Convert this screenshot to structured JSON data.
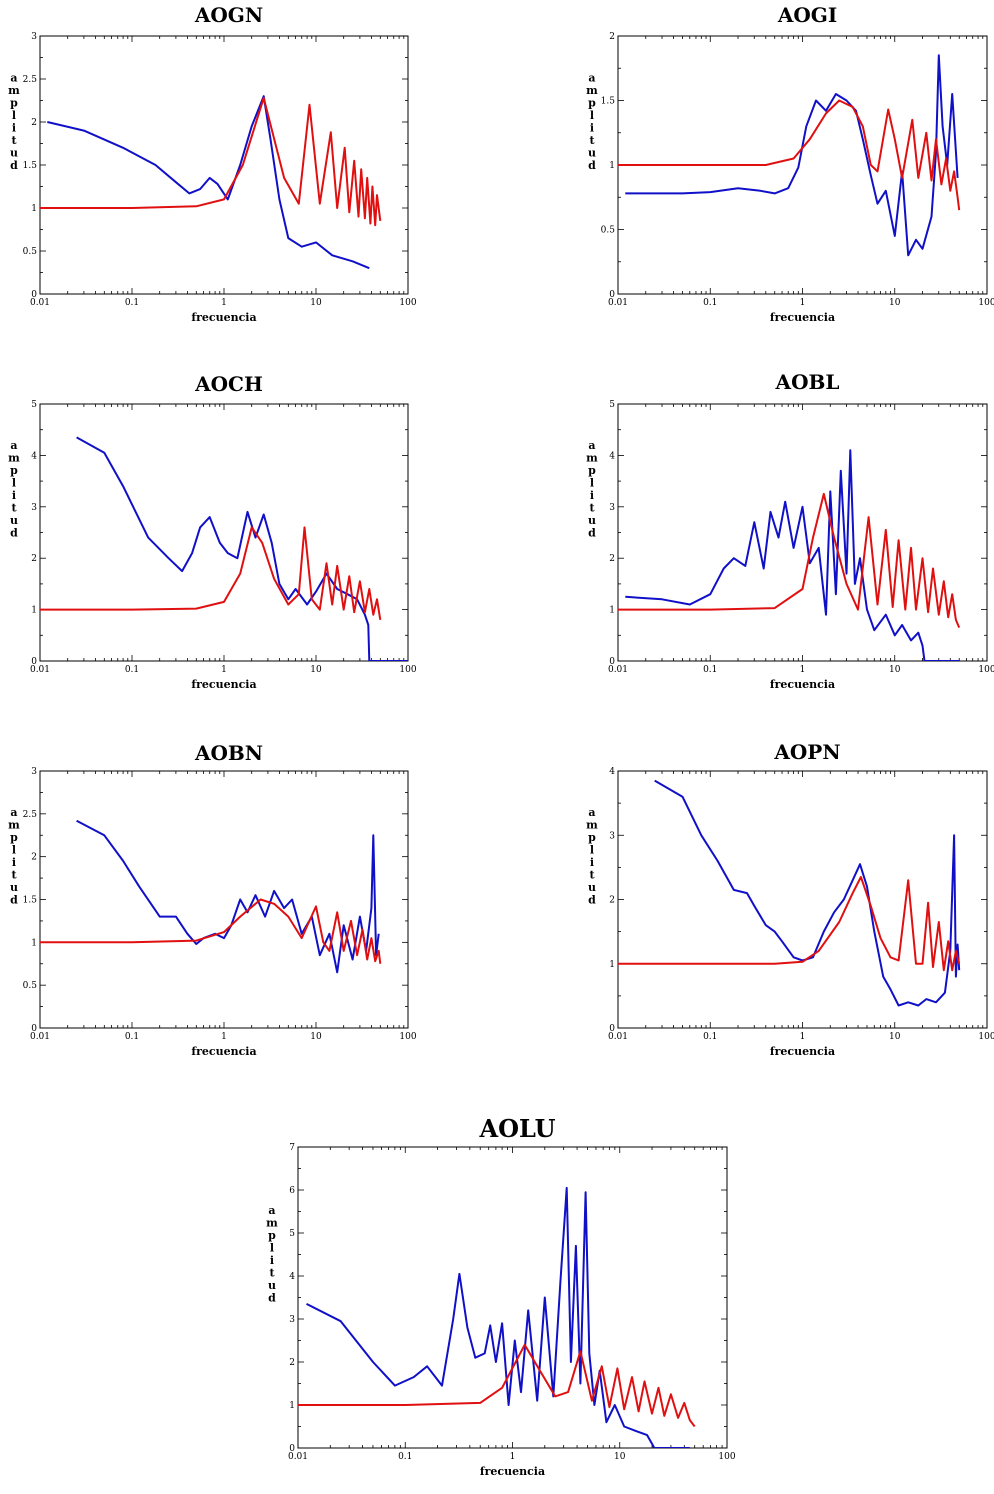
{
  "chart_data": [
    {
      "type": "line",
      "title": "AOGN",
      "xlabel": "frecuencia",
      "ylabel": "amplitud",
      "xscale": "log",
      "xlim": [
        0.01,
        100
      ],
      "ylim": [
        0,
        3
      ],
      "xticks": [
        "0.01",
        "0.1",
        "1",
        "10",
        "100"
      ],
      "yticks": [
        "0",
        "0.5",
        "1",
        "1.5",
        "2",
        "2.5",
        "3"
      ],
      "grid": false,
      "series": [
        {
          "color": "#1010c8",
          "x": [
            0.012,
            0.03,
            0.08,
            0.18,
            0.3,
            0.42,
            0.55,
            0.7,
            0.85,
            1.1,
            1.5,
            2.0,
            2.7,
            3.2,
            4.0,
            5.0,
            7.0,
            10,
            15,
            25,
            38
          ],
          "y": [
            2.0,
            1.9,
            1.7,
            1.5,
            1.3,
            1.17,
            1.22,
            1.35,
            1.28,
            1.1,
            1.5,
            1.95,
            2.3,
            1.8,
            1.1,
            0.65,
            0.55,
            0.6,
            0.45,
            0.38,
            0.3
          ]
        },
        {
          "color": "#e01010",
          "peaks": [
            [
              2.7,
              2.28,
              0.16
            ],
            [
              8.5,
              2.2,
              0.05
            ],
            [
              14.5,
              1.88,
              0.04
            ],
            [
              20.5,
              1.7,
              0.035
            ],
            [
              26,
              1.55,
              0.03
            ],
            [
              31,
              1.45,
              0.03
            ],
            [
              36,
              1.35,
              0.03
            ],
            [
              41,
              1.25,
              0.03
            ],
            [
              46,
              1.15,
              0.03
            ]
          ],
          "x": [
            0.01,
            0.1,
            0.5,
            1,
            1.6,
            2.7,
            4.5,
            6.5,
            8.5,
            11,
            14.5,
            17,
            20.5,
            23,
            26,
            29,
            31,
            34,
            36,
            39,
            41,
            44,
            46,
            50
          ],
          "y": [
            1.0,
            1.0,
            1.02,
            1.1,
            1.5,
            2.28,
            1.35,
            1.05,
            2.2,
            1.05,
            1.88,
            1.0,
            1.7,
            0.95,
            1.55,
            0.9,
            1.45,
            0.88,
            1.35,
            0.82,
            1.25,
            0.8,
            1.15,
            0.85
          ]
        }
      ]
    },
    {
      "type": "line",
      "title": "AOGI",
      "xlabel": "frecuencia",
      "ylabel": "amplitud",
      "xscale": "log",
      "xlim": [
        0.01,
        100
      ],
      "ylim": [
        0,
        2
      ],
      "xticks": [
        "0.01",
        "0.1",
        "1",
        "10",
        "100"
      ],
      "yticks": [
        "0",
        "0.5",
        "1",
        "1.5",
        "2"
      ],
      "grid": false,
      "series": [
        {
          "color": "#1010c8",
          "x": [
            0.012,
            0.05,
            0.1,
            0.2,
            0.35,
            0.5,
            0.7,
            0.9,
            1.1,
            1.4,
            1.8,
            2.3,
            3.0,
            3.8,
            4.5,
            5.5,
            6.5,
            8,
            10,
            12,
            14,
            17,
            20,
            25,
            28,
            30,
            33,
            37,
            42,
            48
          ],
          "y": [
            0.78,
            0.78,
            0.79,
            0.82,
            0.8,
            0.78,
            0.82,
            0.98,
            1.3,
            1.5,
            1.42,
            1.55,
            1.5,
            1.42,
            1.2,
            0.92,
            0.7,
            0.8,
            0.45,
            0.95,
            0.3,
            0.42,
            0.35,
            0.6,
            1.1,
            1.85,
            1.3,
            1.0,
            1.55,
            0.9
          ]
        },
        {
          "color": "#e01010",
          "x": [
            0.01,
            0.1,
            0.4,
            0.8,
            1.2,
            1.8,
            2.5,
            3.5,
            4.5,
            5.5,
            6.5,
            8.5,
            10,
            12,
            15.5,
            18,
            22,
            25,
            28,
            32,
            36,
            40,
            44,
            48,
            50
          ],
          "y": [
            1.0,
            1.0,
            1.0,
            1.05,
            1.2,
            1.4,
            1.5,
            1.45,
            1.3,
            1.0,
            0.95,
            1.43,
            1.2,
            0.9,
            1.35,
            0.9,
            1.25,
            0.88,
            1.2,
            0.85,
            1.05,
            0.8,
            0.95,
            0.75,
            0.65
          ]
        }
      ]
    },
    {
      "type": "line",
      "title": "AOCH",
      "xlabel": "frecuencia",
      "ylabel": "amplitud",
      "xscale": "log",
      "xlim": [
        0.01,
        100
      ],
      "ylim": [
        0,
        5
      ],
      "xticks": [
        "0.01",
        "0.1",
        "1",
        "10",
        "100"
      ],
      "yticks": [
        "0",
        "1",
        "2",
        "3",
        "4",
        "5"
      ],
      "grid": false,
      "series": [
        {
          "color": "#1010c8",
          "x": [
            0.025,
            0.05,
            0.08,
            0.15,
            0.25,
            0.35,
            0.45,
            0.55,
            0.7,
            0.9,
            1.1,
            1.4,
            1.8,
            2.2,
            2.7,
            3.3,
            4.0,
            5.0,
            6.0,
            8.0,
            10,
            13,
            17,
            22,
            28,
            34,
            37,
            38,
            100
          ],
          "y": [
            4.35,
            4.05,
            3.4,
            2.4,
            2.0,
            1.75,
            2.1,
            2.6,
            2.8,
            2.3,
            2.1,
            2.0,
            2.9,
            2.4,
            2.85,
            2.3,
            1.5,
            1.2,
            1.4,
            1.1,
            1.35,
            1.7,
            1.4,
            1.3,
            1.2,
            0.9,
            0.7,
            0.0,
            0.0
          ]
        },
        {
          "color": "#e01010",
          "x": [
            0.01,
            0.1,
            0.5,
            1,
            1.5,
            2.0,
            2.6,
            3.5,
            5,
            6.5,
            7.5,
            9,
            11,
            13,
            15,
            17,
            20,
            23,
            26,
            30,
            34,
            38,
            42,
            46,
            50
          ],
          "y": [
            1.0,
            1.0,
            1.02,
            1.15,
            1.7,
            2.6,
            2.3,
            1.6,
            1.1,
            1.3,
            2.6,
            1.2,
            1.0,
            1.9,
            1.1,
            1.85,
            1.0,
            1.65,
            0.95,
            1.55,
            0.95,
            1.4,
            0.9,
            1.2,
            0.8
          ]
        }
      ]
    },
    {
      "type": "line",
      "title": "AOBL",
      "xlabel": "frecuencia",
      "ylabel": "amplitud",
      "xscale": "log",
      "xlim": [
        0.01,
        100
      ],
      "ylim": [
        0,
        5
      ],
      "xticks": [
        "0.01",
        "0.1",
        "1",
        "10",
        "100"
      ],
      "yticks": [
        "0",
        "1",
        "2",
        "3",
        "4",
        "5"
      ],
      "grid": false,
      "series": [
        {
          "color": "#1010c8",
          "x": [
            0.012,
            0.03,
            0.06,
            0.1,
            0.14,
            0.18,
            0.24,
            0.3,
            0.38,
            0.45,
            0.55,
            0.65,
            0.8,
            1.0,
            1.2,
            1.5,
            1.8,
            2.0,
            2.3,
            2.6,
            3.0,
            3.3,
            3.7,
            4.2,
            5,
            6,
            8,
            10,
            12,
            15,
            18,
            20,
            21,
            50
          ],
          "y": [
            1.25,
            1.2,
            1.1,
            1.3,
            1.8,
            2.0,
            1.85,
            2.7,
            1.8,
            2.9,
            2.4,
            3.1,
            2.2,
            3.0,
            1.9,
            2.2,
            0.9,
            3.3,
            1.3,
            3.7,
            1.7,
            4.1,
            1.5,
            2.0,
            1.0,
            0.6,
            0.9,
            0.5,
            0.7,
            0.4,
            0.55,
            0.3,
            0.0,
            0.0
          ]
        },
        {
          "color": "#e01010",
          "x": [
            0.01,
            0.1,
            0.5,
            1.0,
            1.3,
            1.7,
            2.2,
            3.0,
            4.0,
            5.2,
            6.5,
            8.0,
            9.5,
            11,
            13,
            15,
            17,
            20,
            23,
            26,
            30,
            34,
            38,
            42,
            46,
            50
          ],
          "y": [
            1.0,
            1.0,
            1.03,
            1.4,
            2.4,
            3.25,
            2.4,
            1.5,
            1.0,
            2.8,
            1.1,
            2.55,
            1.05,
            2.35,
            1.0,
            2.2,
            1.0,
            2.0,
            0.95,
            1.8,
            0.9,
            1.55,
            0.85,
            1.3,
            0.8,
            0.65
          ]
        }
      ]
    },
    {
      "type": "line",
      "title": "AOBN",
      "xlabel": "frecuencia",
      "ylabel": "amplitud",
      "xscale": "log",
      "xlim": [
        0.01,
        100
      ],
      "ylim": [
        0,
        3
      ],
      "xticks": [
        "0.01",
        "0.1",
        "1",
        "10",
        "100"
      ],
      "yticks": [
        "0",
        "0.5",
        "1",
        "1.5",
        "2",
        "2.5",
        "3"
      ],
      "grid": false,
      "series": [
        {
          "color": "#1010c8",
          "x": [
            0.025,
            0.05,
            0.08,
            0.12,
            0.2,
            0.3,
            0.4,
            0.5,
            0.6,
            0.8,
            1.0,
            1.2,
            1.5,
            1.8,
            2.2,
            2.8,
            3.5,
            4.5,
            5.5,
            7,
            9,
            11,
            14,
            17,
            20,
            25,
            30,
            35,
            40,
            42,
            45,
            48
          ],
          "y": [
            2.42,
            2.25,
            1.95,
            1.65,
            1.3,
            1.3,
            1.1,
            0.98,
            1.05,
            1.1,
            1.05,
            1.2,
            1.5,
            1.35,
            1.55,
            1.3,
            1.6,
            1.4,
            1.5,
            1.1,
            1.3,
            0.85,
            1.1,
            0.65,
            1.2,
            0.8,
            1.3,
            0.9,
            1.4,
            2.25,
            0.85,
            1.1
          ]
        },
        {
          "color": "#e01010",
          "x": [
            0.01,
            0.1,
            0.5,
            1.0,
            1.5,
            2.5,
            3.5,
            5,
            7,
            10,
            12,
            14,
            17,
            20,
            24,
            28,
            32,
            36,
            40,
            44,
            48,
            50
          ],
          "y": [
            1.0,
            1.0,
            1.02,
            1.12,
            1.3,
            1.5,
            1.45,
            1.3,
            1.05,
            1.42,
            1.0,
            0.9,
            1.35,
            0.9,
            1.25,
            0.85,
            1.15,
            0.8,
            1.05,
            0.78,
            0.9,
            0.75
          ]
        }
      ]
    },
    {
      "type": "line",
      "title": "AOPN",
      "xlabel": "frecuencia",
      "ylabel": "amplitud",
      "xscale": "log",
      "xlim": [
        0.01,
        100
      ],
      "ylim": [
        0,
        4
      ],
      "xticks": [
        "0.01",
        "0.1",
        "1",
        "10",
        "100"
      ],
      "yticks": [
        "0",
        "1",
        "2",
        "3",
        "4"
      ],
      "grid": false,
      "series": [
        {
          "color": "#1010c8",
          "x": [
            0.025,
            0.05,
            0.08,
            0.12,
            0.18,
            0.25,
            0.3,
            0.4,
            0.5,
            0.6,
            0.8,
            1.0,
            1.3,
            1.7,
            2.2,
            2.8,
            3.5,
            4.2,
            5.0,
            6.0,
            7.5,
            9,
            11,
            14,
            18,
            22,
            28,
            35,
            40,
            44,
            46,
            48,
            50
          ],
          "y": [
            3.85,
            3.6,
            3.0,
            2.6,
            2.15,
            2.1,
            1.9,
            1.6,
            1.5,
            1.35,
            1.1,
            1.05,
            1.1,
            1.5,
            1.8,
            2.0,
            2.3,
            2.55,
            2.2,
            1.5,
            0.8,
            0.6,
            0.35,
            0.4,
            0.35,
            0.45,
            0.4,
            0.55,
            1.2,
            3.0,
            0.8,
            1.3,
            0.9
          ]
        },
        {
          "color": "#e01010",
          "x": [
            0.01,
            0.1,
            0.5,
            1.0,
            1.5,
            2.5,
            3.5,
            4.3,
            5.5,
            7,
            9,
            11,
            14,
            17,
            20,
            23,
            26,
            30,
            34,
            38,
            42,
            46,
            50
          ],
          "y": [
            1.0,
            1.0,
            1.0,
            1.03,
            1.2,
            1.65,
            2.1,
            2.35,
            1.9,
            1.4,
            1.1,
            1.05,
            2.3,
            1.0,
            1.0,
            1.95,
            0.95,
            1.65,
            0.9,
            1.35,
            0.9,
            1.2,
            1.0
          ]
        }
      ]
    },
    {
      "type": "line",
      "title": "AOLU",
      "xlabel": "frecuencia",
      "ylabel": "amplitud",
      "xscale": "log",
      "xlim": [
        0.01,
        100
      ],
      "ylim": [
        0,
        7
      ],
      "xticks": [
        "0.01",
        "0.1",
        "1",
        "10",
        "100"
      ],
      "yticks": [
        "0",
        "1",
        "2",
        "3",
        "4",
        "5",
        "6",
        "7"
      ],
      "grid": false,
      "series": [
        {
          "color": "#1010c8",
          "x": [
            0.012,
            0.025,
            0.05,
            0.08,
            0.12,
            0.16,
            0.22,
            0.28,
            0.32,
            0.38,
            0.45,
            0.55,
            0.62,
            0.7,
            0.8,
            0.92,
            1.05,
            1.2,
            1.4,
            1.7,
            2.0,
            2.4,
            2.8,
            3.2,
            3.5,
            3.9,
            4.3,
            4.8,
            5.2,
            5.8,
            6.5,
            7.5,
            9,
            11,
            14,
            18,
            20,
            21,
            45
          ],
          "y": [
            3.35,
            2.95,
            2.0,
            1.45,
            1.65,
            1.9,
            1.45,
            3.0,
            4.05,
            2.8,
            2.1,
            2.2,
            2.85,
            2.0,
            2.9,
            1.0,
            2.5,
            1.3,
            3.2,
            1.1,
            3.5,
            1.2,
            3.9,
            6.05,
            2.0,
            4.7,
            1.5,
            5.95,
            2.2,
            1.0,
            1.8,
            0.6,
            1.0,
            0.5,
            0.4,
            0.3,
            0.1,
            0.0,
            0.0
          ]
        },
        {
          "color": "#e01010",
          "x": [
            0.01,
            0.1,
            0.5,
            0.8,
            1.3,
            1.8,
            2.5,
            3.3,
            4.3,
            5.5,
            6.8,
            8,
            9.5,
            11,
            13,
            15,
            17,
            20,
            23,
            26,
            30,
            35,
            40,
            45,
            50
          ],
          "y": [
            1.0,
            1.0,
            1.05,
            1.4,
            2.4,
            1.8,
            1.2,
            1.3,
            2.25,
            1.1,
            1.9,
            0.95,
            1.85,
            0.9,
            1.65,
            0.85,
            1.55,
            0.8,
            1.4,
            0.75,
            1.25,
            0.7,
            1.05,
            0.65,
            0.5
          ]
        }
      ]
    }
  ]
}
